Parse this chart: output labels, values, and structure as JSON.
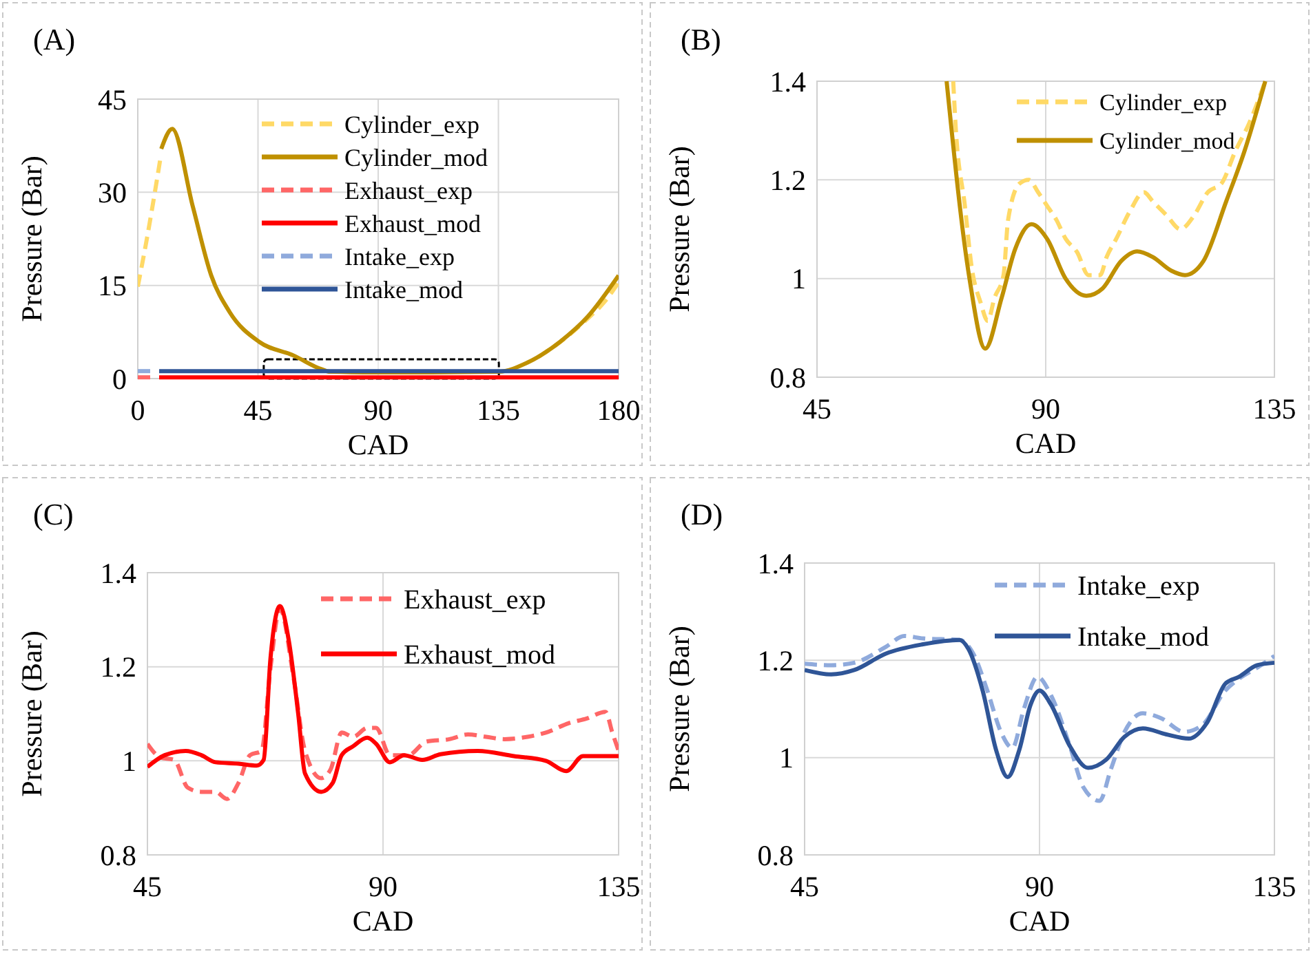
{
  "chart_data": [
    {
      "type": "line",
      "title": "(A)",
      "xlabel": "CAD",
      "ylabel": "Pressure (Bar)",
      "xlim": [
        0,
        180
      ],
      "ylim": [
        0,
        45
      ],
      "xticks": [
        0,
        45,
        90,
        135,
        180
      ],
      "yticks": [
        0,
        15,
        30,
        45
      ],
      "grid": true,
      "legend": "top right",
      "series": [
        {
          "name": "Cylinder_exp",
          "color": "#ffd966",
          "line_style": "dashed",
          "x": [
            0,
            3.4,
            6.9,
            8.6,
            10,
            150,
            160,
            168,
            175,
            180
          ],
          "values": [
            14.8,
            22.5,
            31.3,
            35.8,
            null,
            3.5,
            6.5,
            9.5,
            12.5,
            15.5
          ]
        },
        {
          "name": "Cylinder_mod",
          "color": "#bf9000",
          "line_style": "solid",
          "x": [
            8.8,
            12.9,
            20.6,
            27.5,
            34.4,
            45.5,
            58.4,
            68.8,
            72,
            90,
            110,
            135,
            146,
            158,
            168.5,
            180
          ],
          "values": [
            37,
            40.2,
            27.7,
            16.6,
            10.7,
            5.9,
            3.7,
            1.5,
            1.1,
            1,
            1,
            1.1,
            2.6,
            5.9,
            10,
            16.6
          ]
        },
        {
          "name": "Exhaust_exp",
          "color": "#ff6666",
          "line_style": "dashed",
          "x": [
            0,
            5
          ],
          "values": [
            0.2,
            0.2
          ]
        },
        {
          "name": "Exhaust_mod",
          "color": "#ff0000",
          "line_style": "solid",
          "x": [
            8,
            45,
            90,
            135,
            180
          ],
          "values": [
            0.2,
            0.2,
            0.2,
            0.2,
            0.2
          ]
        },
        {
          "name": "Intake_exp",
          "color": "#8faadc",
          "line_style": "dashed",
          "x": [
            0,
            7
          ],
          "values": [
            1.2,
            1.2
          ]
        },
        {
          "name": "Intake_mod",
          "color": "#2f5597",
          "line_style": "solid",
          "x": [
            8,
            45,
            90,
            135,
            180
          ],
          "values": [
            1.2,
            1.2,
            1.2,
            1.2,
            1.2
          ]
        }
      ]
    },
    {
      "type": "line",
      "title": "(B)",
      "xlabel": "CAD",
      "ylabel": "Pressure (Bar)",
      "xlim": [
        45,
        135
      ],
      "ylim": [
        0.8,
        1.4
      ],
      "xticks": [
        45,
        90,
        135
      ],
      "yticks": [
        0.8,
        1,
        1.2,
        1.4
      ],
      "grid": true,
      "legend": "top right",
      "series": [
        {
          "name": "Cylinder_exp",
          "color": "#ffd966",
          "line_style": "dashed",
          "x": [
            71.8,
            72.3,
            74.1,
            75.4,
            77.2,
            78.6,
            79.9,
            81.7,
            82.6,
            84.9,
            86.7,
            88.5,
            90.3,
            92.1,
            93.9,
            96.2,
            98.4,
            100.7,
            102,
            103.9,
            106.6,
            109.3,
            111.1,
            113.8,
            116.5,
            119.2,
            121.9,
            124.6,
            127.3,
            130,
            133.2
          ],
          "values": [
            1.4,
            1.305,
            1.147,
            1.025,
            0.951,
            0.914,
            0.96,
            1.007,
            1.119,
            1.193,
            1.2,
            1.175,
            1.147,
            1.119,
            1.081,
            1.053,
            1.007,
            1.007,
            1.044,
            1.081,
            1.137,
            1.175,
            1.156,
            1.128,
            1.1,
            1.128,
            1.175,
            1.193,
            1.258,
            1.314,
            1.4
          ]
        },
        {
          "name": "Cylinder_mod",
          "color": "#bf9000",
          "line_style": "solid",
          "x": [
            70.5,
            75,
            78.1,
            81.3,
            84,
            87.2,
            90.3,
            93.9,
            98,
            101.2,
            104.8,
            108,
            111,
            114.7,
            117.4,
            121,
            125.5,
            129.1,
            133.2
          ],
          "values": [
            1.4,
            1.0,
            0.858,
            0.96,
            1.06,
            1.11,
            1.08,
            1.0,
            0.965,
            0.98,
            1.035,
            1.055,
            1.044,
            1.016,
            1.007,
            1.035,
            1.156,
            1.258,
            1.4
          ]
        }
      ]
    },
    {
      "type": "line",
      "title": "(C)",
      "xlabel": "CAD",
      "ylabel": "Pressure (Bar)",
      "xlim": [
        45,
        135
      ],
      "ylim": [
        0.8,
        1.4
      ],
      "xticks": [
        45,
        90,
        135
      ],
      "yticks": [
        0.8,
        1,
        1.2,
        1.4
      ],
      "grid": true,
      "legend": "top right",
      "series": [
        {
          "name": "Exhaust_exp",
          "color": "#ff6666",
          "line_style": "dashed",
          "x": [
            45,
            47.5,
            50.1,
            52.7,
            55.3,
            58,
            60.2,
            62.4,
            64.6,
            66.8,
            68.5,
            70.3,
            72.9,
            75.1,
            78.2,
            80,
            82.1,
            84.3,
            87,
            88.7,
            91.3,
            94.8,
            98.3,
            102.7,
            106.2,
            109.7,
            113.2,
            117.6,
            121.1,
            125.5,
            128.9,
            132.5,
            133.8,
            135
          ],
          "values": [
            1.036,
            1.007,
            1.002,
            0.943,
            0.934,
            0.934,
            0.919,
            0.953,
            1.012,
            1.021,
            1.197,
            1.324,
            1.178,
            1.021,
            0.963,
            0.982,
            1.06,
            1.051,
            1.07,
            1.07,
            1.012,
            1.012,
            1.041,
            1.046,
            1.056,
            1.051,
            1.046,
            1.051,
            1.06,
            1.08,
            1.09,
            1.104,
            1.06,
            1.021
          ]
        },
        {
          "name": "Exhaust_mod",
          "color": "#ff0000",
          "line_style": "solid",
          "x": [
            45,
            48.3,
            52.3,
            55.3,
            58,
            62.4,
            65.9,
            67.2,
            68.5,
            70.3,
            72,
            73.8,
            75.1,
            78.2,
            80.4,
            82.1,
            84.3,
            87,
            88.7,
            91.3,
            94,
            97.5,
            101,
            108.1,
            115,
            121.1,
            125,
            128.2,
            135
          ],
          "values": [
            0.987,
            1.012,
            1.021,
            1.012,
            0.997,
            0.994,
            0.99,
            1.002,
            1.217,
            1.329,
            1.256,
            1.1,
            0.973,
            0.934,
            0.953,
            1.012,
            1.031,
            1.049,
            1.036,
            0.997,
            1.012,
            1.002,
            1.014,
            1.021,
            1.01,
            1.0,
            0.978,
            1.01,
            1.01
          ]
        }
      ]
    },
    {
      "type": "line",
      "title": "(D)",
      "xlabel": "CAD",
      "ylabel": "Pressure (Bar)",
      "xlim": [
        45,
        135
      ],
      "ylim": [
        0.8,
        1.4
      ],
      "xticks": [
        45,
        90,
        135
      ],
      "yticks": [
        0.8,
        1,
        1.2,
        1.4
      ],
      "grid": true,
      "legend": "top right",
      "series": [
        {
          "name": "Intake_exp",
          "color": "#8faadc",
          "line_style": "dashed",
          "x": [
            45,
            50.1,
            54.5,
            60.6,
            64.1,
            67.7,
            74.7,
            77.3,
            80,
            82.6,
            84.8,
            87,
            89.6,
            92.2,
            95.8,
            98.4,
            101.5,
            103.7,
            106.3,
            109.8,
            113.3,
            117.7,
            121.2,
            125.6,
            128.2,
            131.7,
            135
          ],
          "values": [
            1.193,
            1.19,
            1.195,
            1.228,
            1.25,
            1.245,
            1.242,
            1.214,
            1.138,
            1.053,
            1.02,
            1.1,
            1.166,
            1.128,
            1.024,
            0.939,
            0.911,
            0.977,
            1.053,
            1.091,
            1.081,
            1.053,
            1.067,
            1.138,
            1.162,
            1.185,
            1.209
          ]
        },
        {
          "name": "Intake_mod",
          "color": "#2f5597",
          "line_style": "solid",
          "x": [
            45,
            50.1,
            54.5,
            60.6,
            67.7,
            74.7,
            76.4,
            79.1,
            81.7,
            83.9,
            86.1,
            88.3,
            90,
            92.2,
            95.8,
            99.3,
            102.8,
            106.3,
            109.8,
            114.2,
            118.6,
            122.1,
            125.6,
            128.2,
            131.7,
            135
          ],
          "values": [
            1.18,
            1.171,
            1.18,
            1.214,
            1.233,
            1.242,
            1.223,
            1.138,
            1.015,
            0.96,
            1.015,
            1.109,
            1.138,
            1.109,
            1.024,
            0.979,
            0.996,
            1.043,
            1.06,
            1.048,
            1.039,
            1.072,
            1.152,
            1.166,
            1.19,
            1.195
          ]
        }
      ]
    }
  ]
}
